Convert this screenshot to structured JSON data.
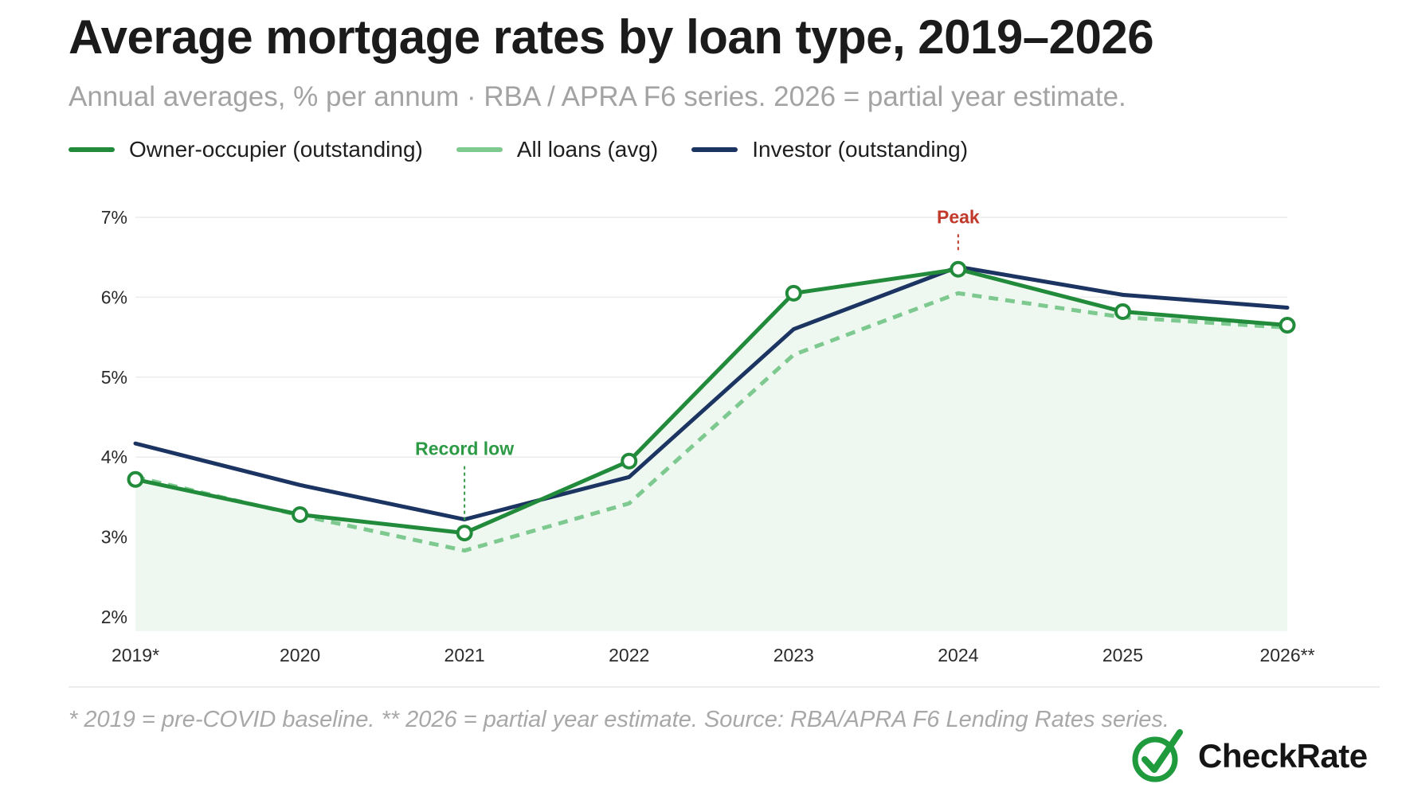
{
  "chart_data": {
    "type": "line",
    "title": "Average mortgage rates by loan type, 2019–2026",
    "subtitle": "Annual averages, % per annum · RBA / APRA F6 series. 2026 = partial year estimate.",
    "categories": [
      "2019*",
      "2020",
      "2021",
      "2022",
      "2023",
      "2024",
      "2025",
      "2026**"
    ],
    "yticks": [
      "2%",
      "3%",
      "4%",
      "5%",
      "6%",
      "7%"
    ],
    "ylim": [
      2,
      7
    ],
    "grid": true,
    "legend_position": "top-left",
    "series": [
      {
        "name": "Owner-occupier (outstanding)",
        "values": [
          3.72,
          3.28,
          3.05,
          3.95,
          6.05,
          6.35,
          5.82,
          5.65
        ],
        "color": "#228b3b",
        "style": "solid-markers"
      },
      {
        "name": "All loans (avg)",
        "values": [
          3.75,
          3.27,
          2.83,
          3.42,
          5.28,
          6.05,
          5.75,
          5.62
        ],
        "color": "#7dc98f",
        "style": "dashed"
      },
      {
        "name": "Investor (outstanding)",
        "values": [
          4.17,
          3.65,
          3.22,
          3.75,
          5.6,
          6.38,
          6.03,
          5.87
        ],
        "color": "#1c3461",
        "style": "solid"
      }
    ],
    "annotations": [
      {
        "text": "Record low",
        "category": "2021",
        "series": 0,
        "color": "#2d9a46"
      },
      {
        "text": "Peak",
        "category": "2024",
        "series": 0,
        "color": "#c0392b"
      }
    ],
    "area_fill_color": "#eef8f0"
  },
  "footnote": "* 2019 = pre-COVID baseline. ** 2026 = partial year estimate. Source: RBA/APRA F6 Lending Rates series.",
  "brand": {
    "name": "CheckRate",
    "mark_icon": "circle-checkmark-icon",
    "mark_color": "#1f9a3d"
  }
}
